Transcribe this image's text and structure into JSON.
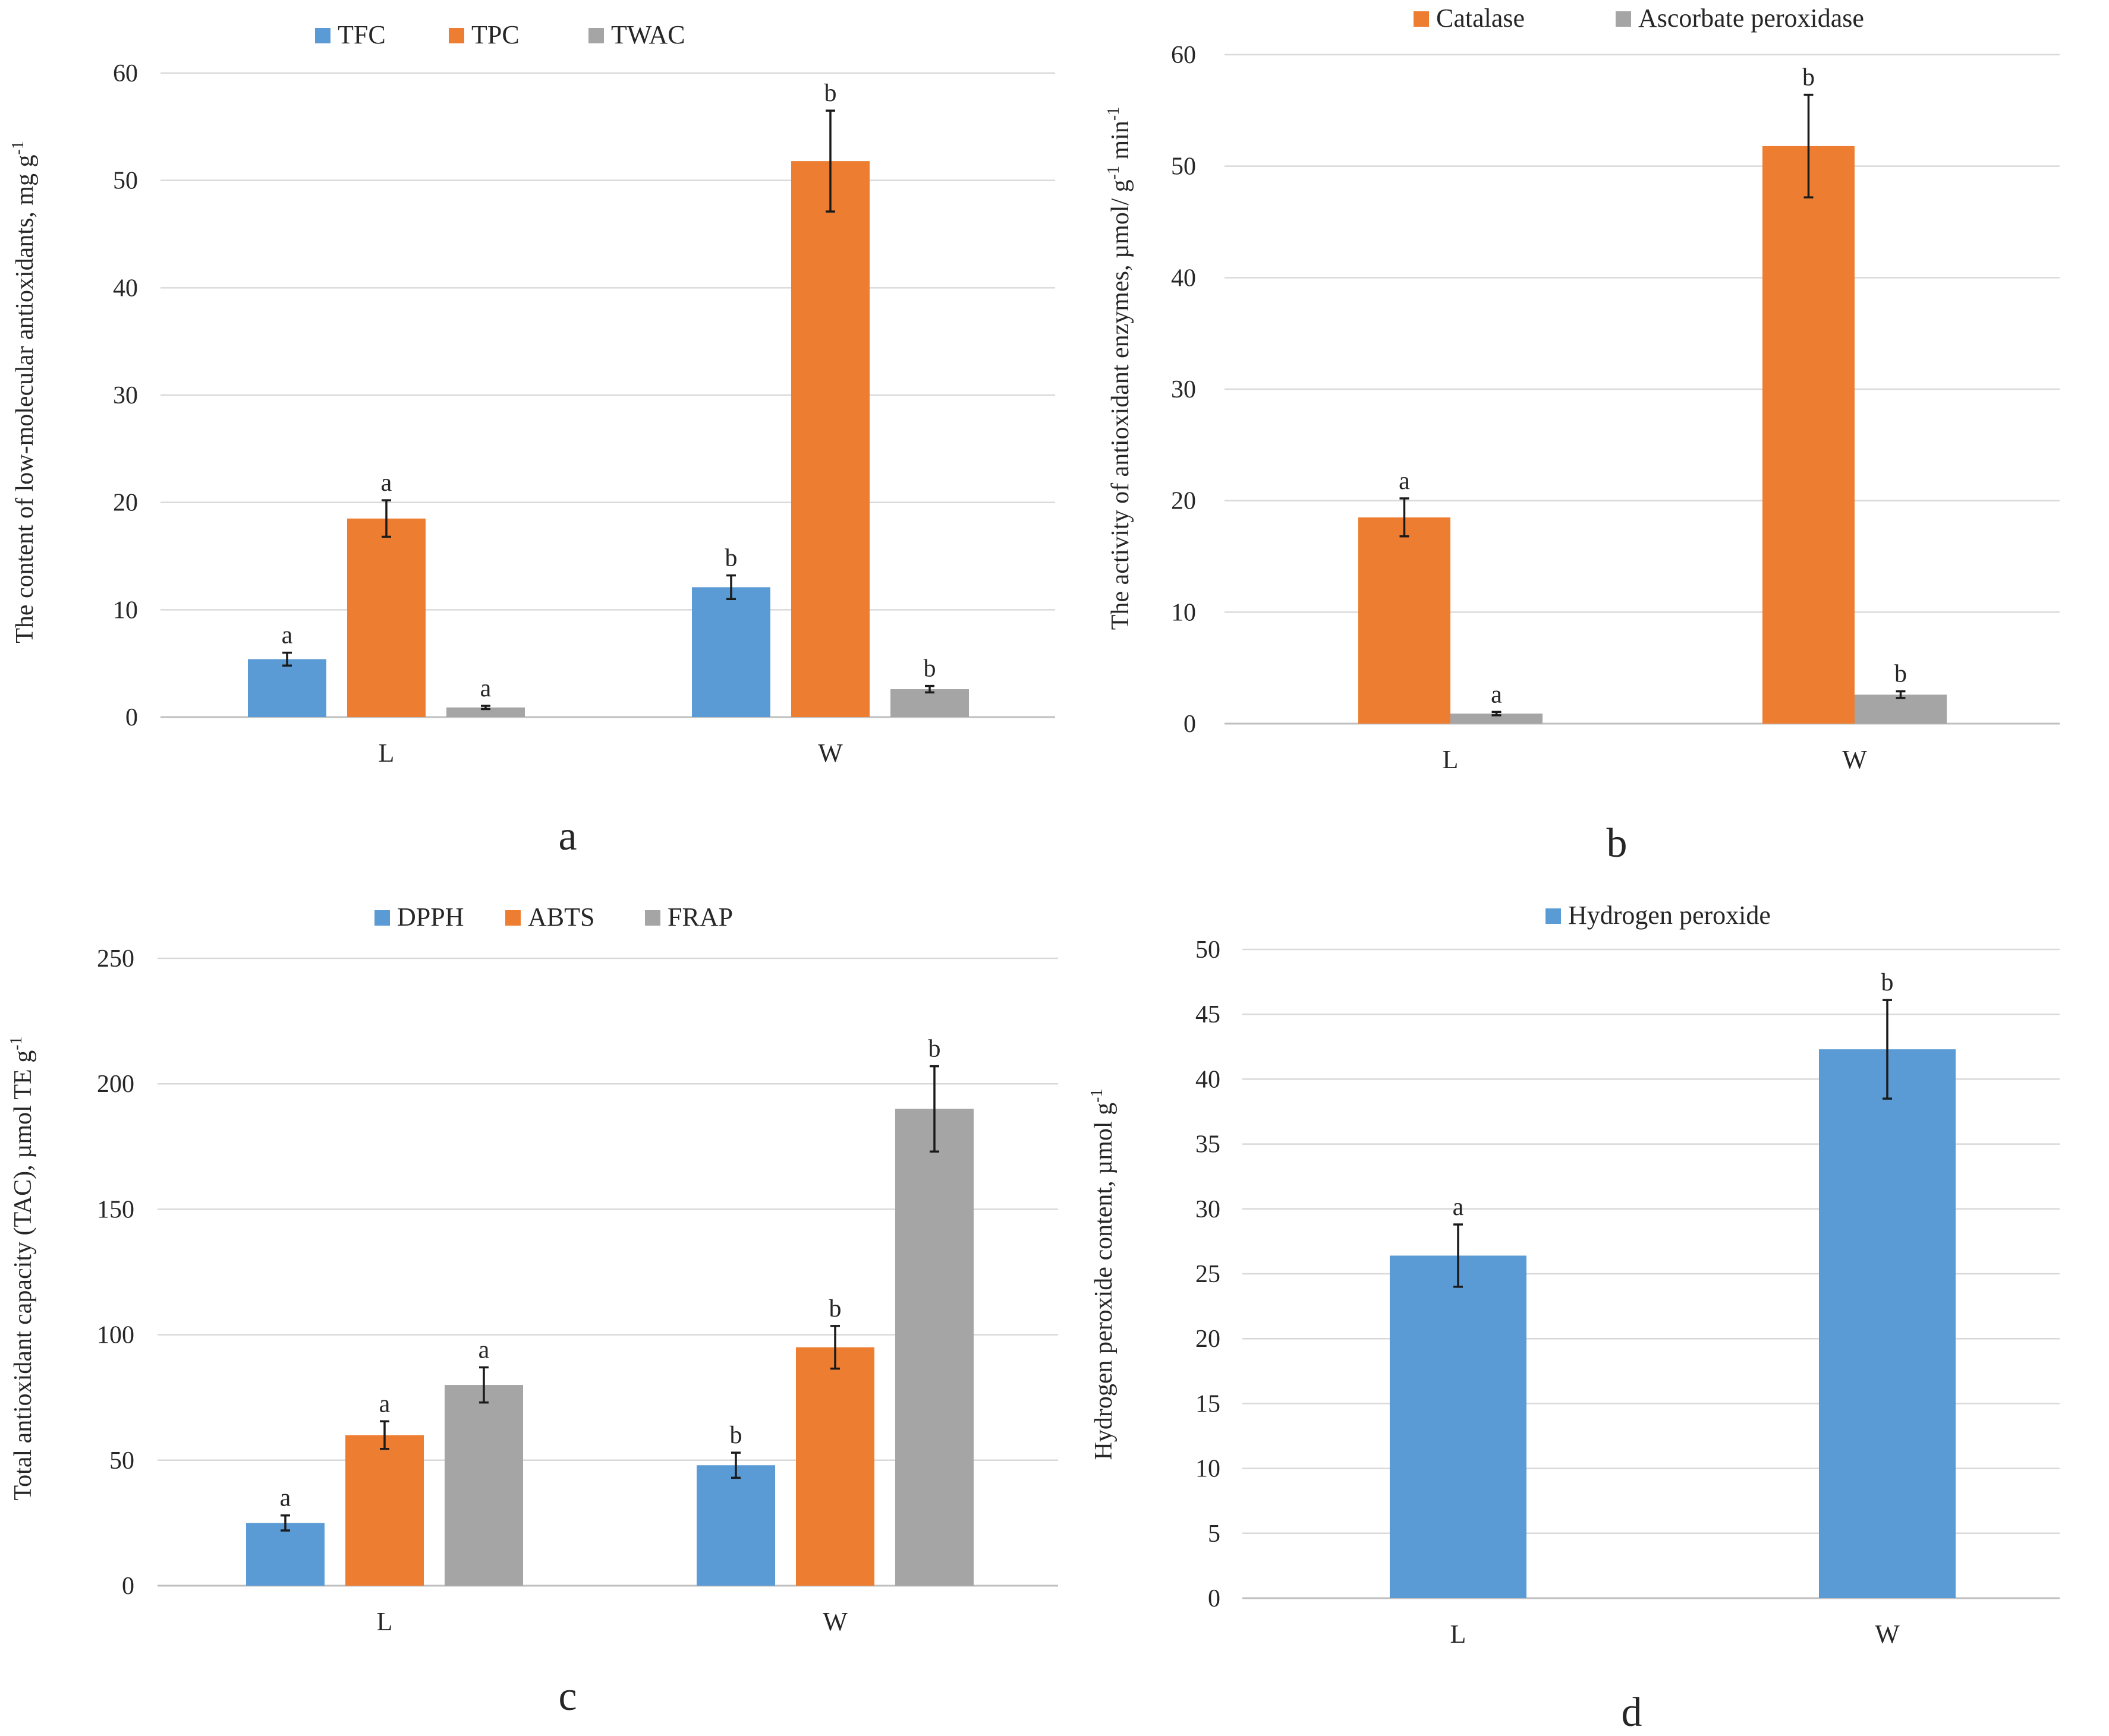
{
  "colors": {
    "blue": "#5b9bd5",
    "orange": "#ed7d31",
    "gray": "#a5a5a5"
  },
  "chart_data": [
    {
      "id": "a",
      "type": "bar",
      "panel_label": "a",
      "ylabel": "The content of low-molecular antioxidants, mg g",
      "ylabel_sup": "-1",
      "ylim": [
        0,
        60
      ],
      "yticks": [
        0,
        10,
        20,
        30,
        40,
        50,
        60
      ],
      "categories": [
        "L",
        "W"
      ],
      "series": [
        {
          "name": "TFC",
          "color": "#5b9bd5",
          "values": [
            5.4,
            12.1
          ],
          "errors": [
            0.6,
            1.1
          ],
          "letters": [
            "a",
            "b"
          ]
        },
        {
          "name": "TPC",
          "color": "#ed7d31",
          "values": [
            18.5,
            51.8
          ],
          "errors": [
            1.7,
            4.7
          ],
          "letters": [
            "a",
            "b"
          ]
        },
        {
          "name": "TWAC",
          "color": "#a5a5a5",
          "values": [
            0.9,
            2.6
          ],
          "errors": [
            0.15,
            0.3
          ],
          "letters": [
            "a",
            "b"
          ]
        }
      ]
    },
    {
      "id": "b",
      "type": "bar",
      "panel_label": "b",
      "ylabel": "The activity of antioxidant enzymes, µmol/ g",
      "ylabel_sup": "-1",
      "ylabel_tail": " min",
      "ylabel_sup2": "-1",
      "ylim": [
        0,
        60
      ],
      "yticks": [
        0,
        10,
        20,
        30,
        40,
        50,
        60
      ],
      "categories": [
        "L",
        "W"
      ],
      "series": [
        {
          "name": "Catalase",
          "color": "#ed7d31",
          "values": [
            18.5,
            51.8
          ],
          "errors": [
            1.7,
            4.6
          ],
          "letters": [
            "a",
            "b"
          ]
        },
        {
          "name": "Ascorbate peroxidase",
          "color": "#a5a5a5",
          "values": [
            0.9,
            2.6
          ],
          "errors": [
            0.15,
            0.3
          ],
          "letters": [
            "a",
            "b"
          ]
        }
      ]
    },
    {
      "id": "c",
      "type": "bar",
      "panel_label": "c",
      "ylabel": "Total antioxidant capacity (TAC), µmol TE g",
      "ylabel_sup": "-1",
      "ylim": [
        0,
        250
      ],
      "yticks": [
        0,
        50,
        100,
        150,
        200,
        250
      ],
      "categories": [
        "L",
        "W"
      ],
      "series": [
        {
          "name": "DPPH",
          "color": "#5b9bd5",
          "values": [
            25,
            48
          ],
          "errors": [
            3,
            5
          ],
          "letters": [
            "a",
            "b"
          ]
        },
        {
          "name": "ABTS",
          "color": "#ed7d31",
          "values": [
            60,
            95
          ],
          "errors": [
            5.5,
            8.5
          ],
          "letters": [
            "a",
            "b"
          ]
        },
        {
          "name": "FRAP",
          "color": "#a5a5a5",
          "values": [
            80,
            190
          ],
          "errors": [
            7,
            17
          ],
          "letters": [
            "a",
            "b"
          ]
        }
      ]
    },
    {
      "id": "d",
      "type": "bar",
      "panel_label": "d",
      "ylabel": "Hydrogen peroxide content, µmol g",
      "ylabel_sup": "-1",
      "ylim": [
        0,
        50
      ],
      "yticks": [
        0,
        5,
        10,
        15,
        20,
        25,
        30,
        35,
        40,
        45,
        50
      ],
      "categories": [
        "L",
        "W"
      ],
      "series": [
        {
          "name": "Hydrogen peroxide",
          "color": "#5b9bd5",
          "values": [
            26.4,
            42.3
          ],
          "errors": [
            2.4,
            3.8
          ],
          "letters": [
            "a",
            "b"
          ]
        }
      ]
    }
  ]
}
